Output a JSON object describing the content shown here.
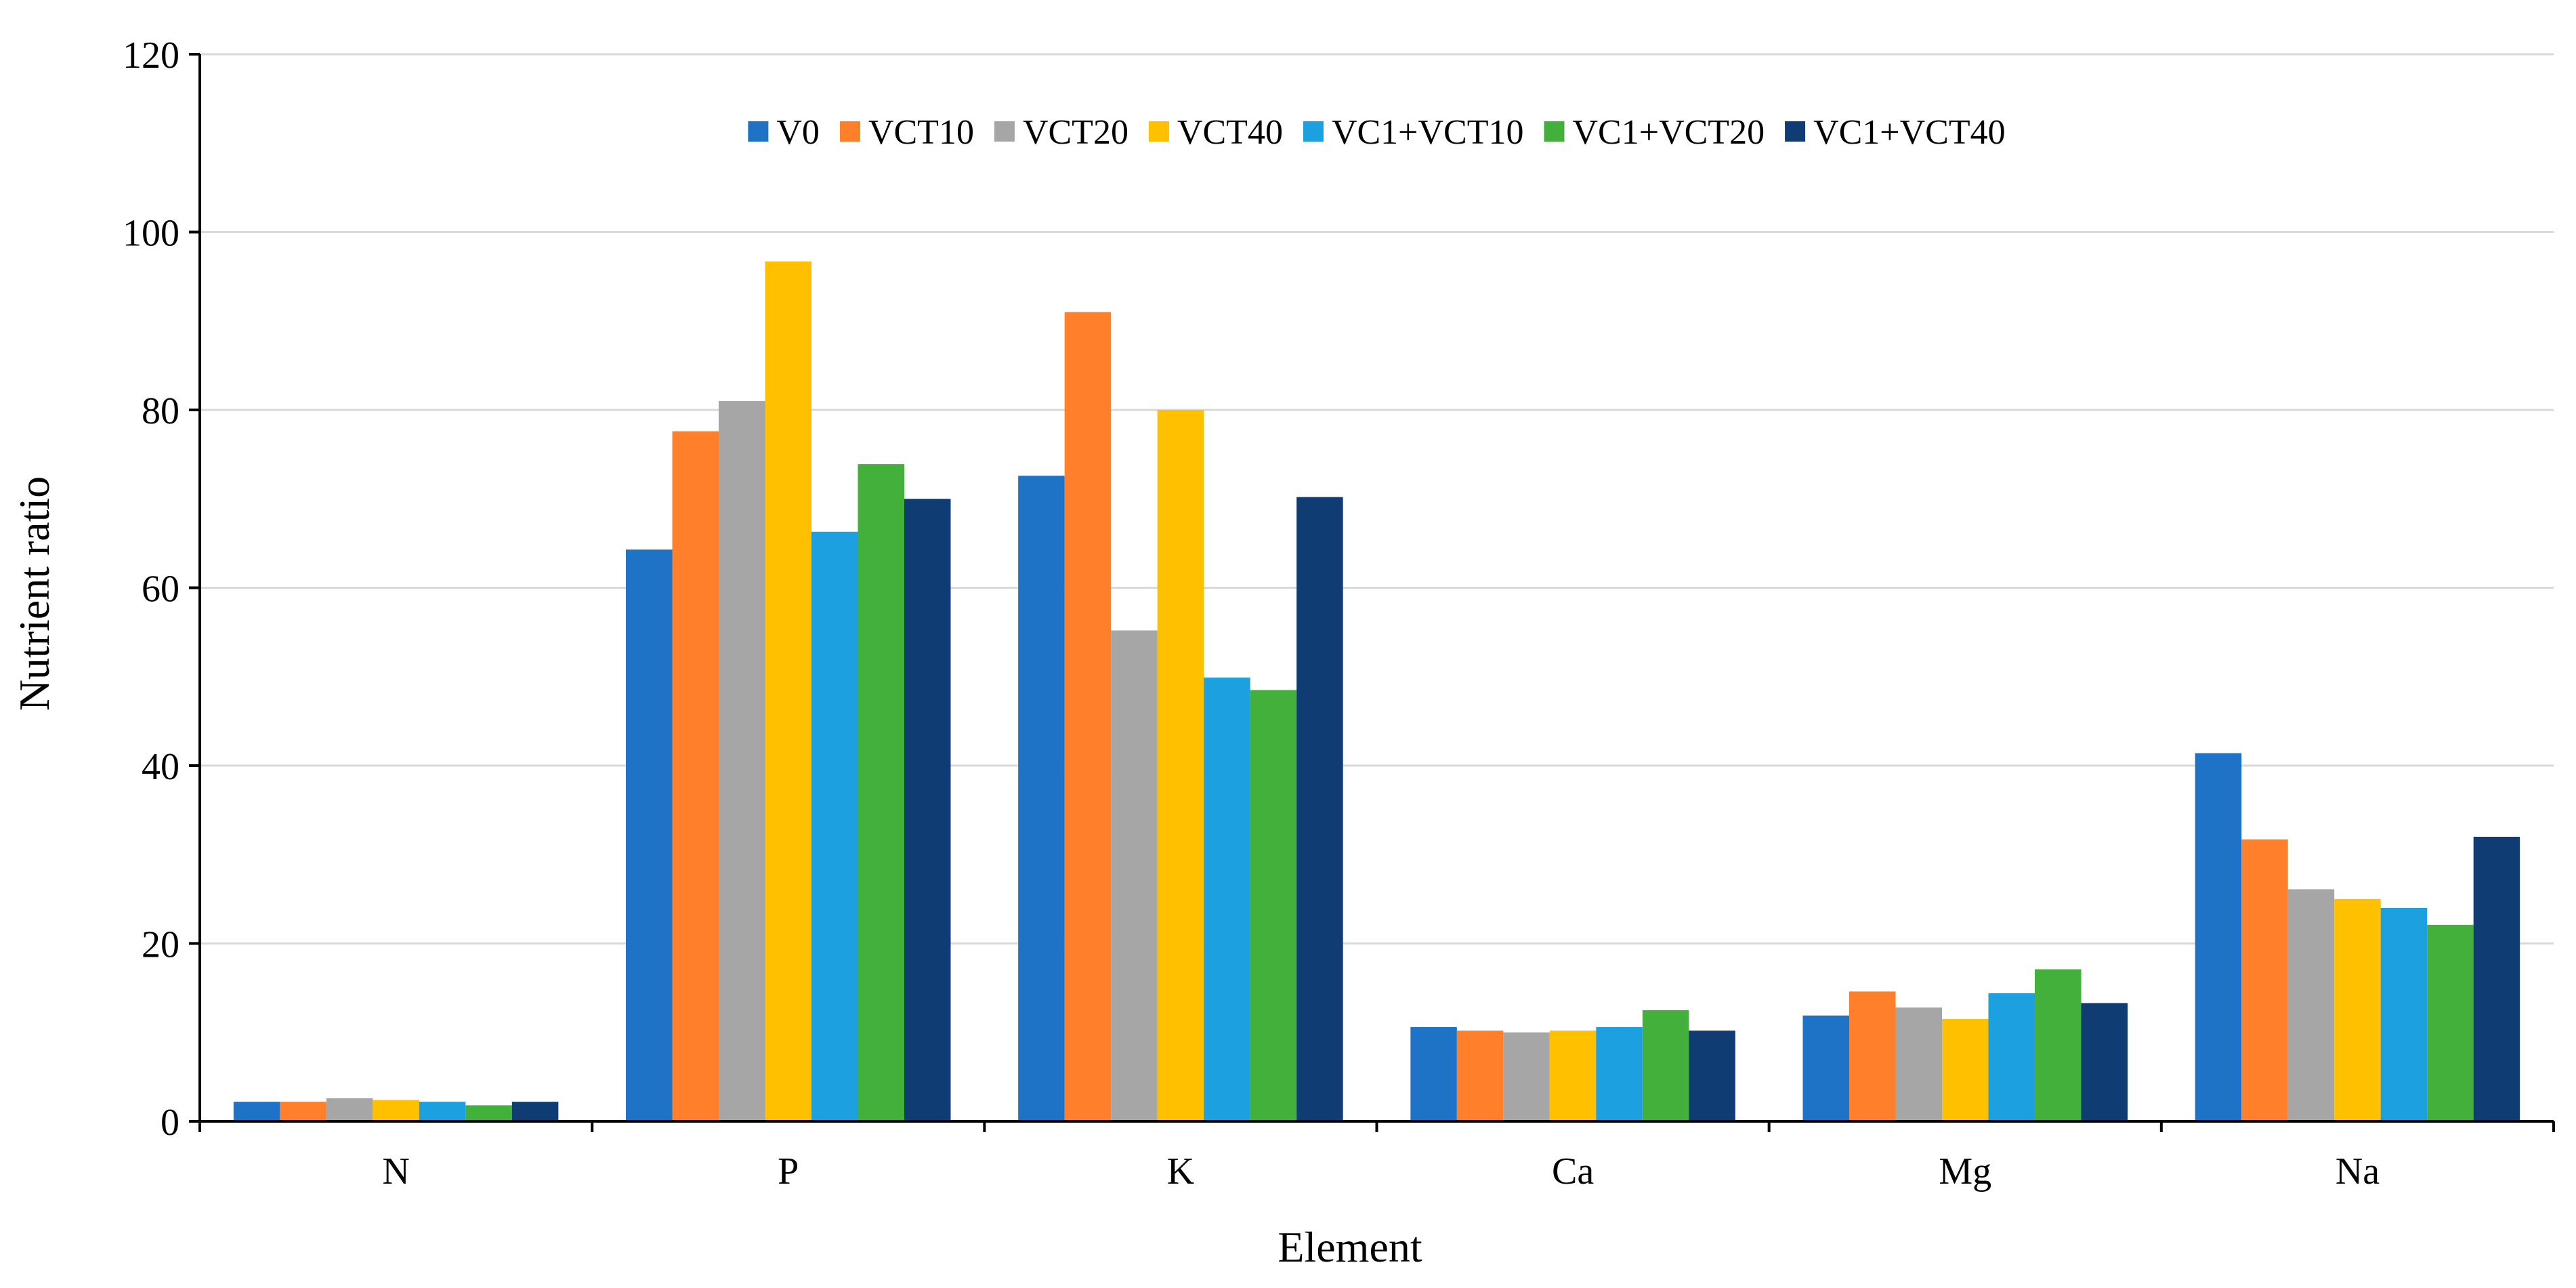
{
  "chart_data": {
    "type": "bar",
    "title": "",
    "xlabel": "Element",
    "ylabel": "Nutrient ratio",
    "categories": [
      "N",
      "P",
      "K",
      "Ca",
      "Mg",
      "Na"
    ],
    "ylim": [
      0,
      120
    ],
    "yticks": [
      0,
      20,
      40,
      60,
      80,
      100,
      120
    ],
    "grid": true,
    "legend_position": "top-center",
    "series": [
      {
        "name": "V0",
        "color": "#1f73c6",
        "values": [
          2.2,
          64.3,
          72.6,
          10.6,
          11.9,
          41.4
        ]
      },
      {
        "name": "VCT10",
        "color": "#ff7f2a",
        "values": [
          2.2,
          77.6,
          91.0,
          10.2,
          14.6,
          31.7
        ]
      },
      {
        "name": "VCT20",
        "color": "#a6a6a6",
        "values": [
          2.6,
          81.0,
          55.2,
          10.0,
          12.8,
          26.1
        ]
      },
      {
        "name": "VCT40",
        "color": "#ffc000",
        "values": [
          2.4,
          96.7,
          80.0,
          10.2,
          11.5,
          25.0
        ]
      },
      {
        "name": "VC1+VCT10",
        "color": "#1ca0e0",
        "values": [
          2.2,
          66.3,
          49.9,
          10.6,
          14.4,
          24.0
        ]
      },
      {
        "name": "VC1+VCT20",
        "color": "#44b03c",
        "values": [
          1.8,
          73.9,
          48.5,
          12.5,
          17.1,
          22.1
        ]
      },
      {
        "name": "VC1+VCT40",
        "color": "#0f3d73",
        "values": [
          2.2,
          70.0,
          70.2,
          10.2,
          13.3,
          32.0
        ]
      }
    ]
  }
}
